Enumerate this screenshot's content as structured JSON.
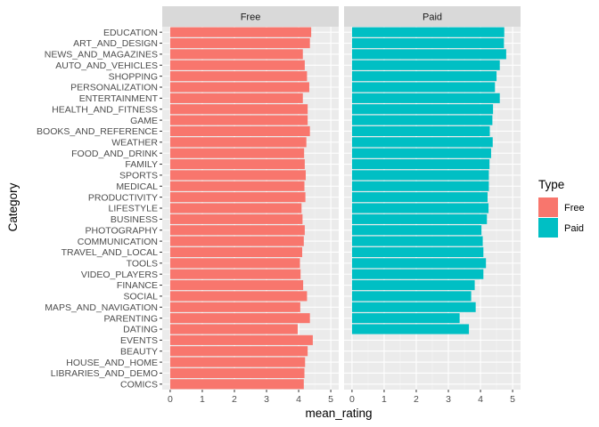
{
  "chart_data": {
    "type": "bar",
    "orientation": "horizontal",
    "facets": [
      "Free",
      "Paid"
    ],
    "xlabel": "mean_rating",
    "ylabel": "Category",
    "xlim": [
      0,
      5
    ],
    "x_ticks": [
      0,
      1,
      2,
      3,
      4,
      5
    ],
    "grid": true,
    "legend": {
      "title": "Type",
      "position": "right",
      "entries": [
        {
          "label": "Free",
          "color": "#F8766D"
        },
        {
          "label": "Paid",
          "color": "#00BFC4"
        }
      ]
    },
    "categories": [
      "EDUCATION",
      "ART_AND_DESIGN",
      "NEWS_AND_MAGAZINES",
      "AUTO_AND_VEHICLES",
      "SHOPPING",
      "PERSONALIZATION",
      "ENTERTAINMENT",
      "HEALTH_AND_FITNESS",
      "GAME",
      "BOOKS_AND_REFERENCE",
      "WEATHER",
      "FOOD_AND_DRINK",
      "FAMILY",
      "SPORTS",
      "MEDICAL",
      "PRODUCTIVITY",
      "LIFESTYLE",
      "BUSINESS",
      "PHOTOGRAPHY",
      "COMMUNICATION",
      "TRAVEL_AND_LOCAL",
      "TOOLS",
      "VIDEO_PLAYERS",
      "FINANCE",
      "SOCIAL",
      "MAPS_AND_NAVIGATION",
      "PARENTING",
      "DATING",
      "EVENTS",
      "BEAUTY",
      "HOUSE_AND_HOME",
      "LIBRARIES_AND_DEMO",
      "COMICS"
    ],
    "series": [
      {
        "name": "Free",
        "color": "#F8766D",
        "values": [
          4.39,
          4.35,
          4.13,
          4.19,
          4.26,
          4.33,
          4.13,
          4.28,
          4.28,
          4.35,
          4.24,
          4.17,
          4.19,
          4.22,
          4.18,
          4.21,
          4.09,
          4.12,
          4.19,
          4.16,
          4.11,
          4.04,
          4.06,
          4.14,
          4.26,
          4.05,
          4.35,
          3.97,
          4.44,
          4.28,
          4.2,
          4.18,
          4.16
        ]
      },
      {
        "name": "Paid",
        "color": "#00BFC4",
        "values": [
          4.74,
          4.73,
          4.8,
          4.6,
          4.5,
          4.45,
          4.6,
          4.39,
          4.37,
          4.29,
          4.38,
          4.33,
          4.28,
          4.26,
          4.26,
          4.22,
          4.25,
          4.2,
          4.03,
          4.07,
          4.09,
          4.17,
          4.09,
          3.82,
          3.71,
          3.85,
          3.35,
          3.64,
          null,
          null,
          null,
          null,
          null
        ]
      }
    ]
  }
}
